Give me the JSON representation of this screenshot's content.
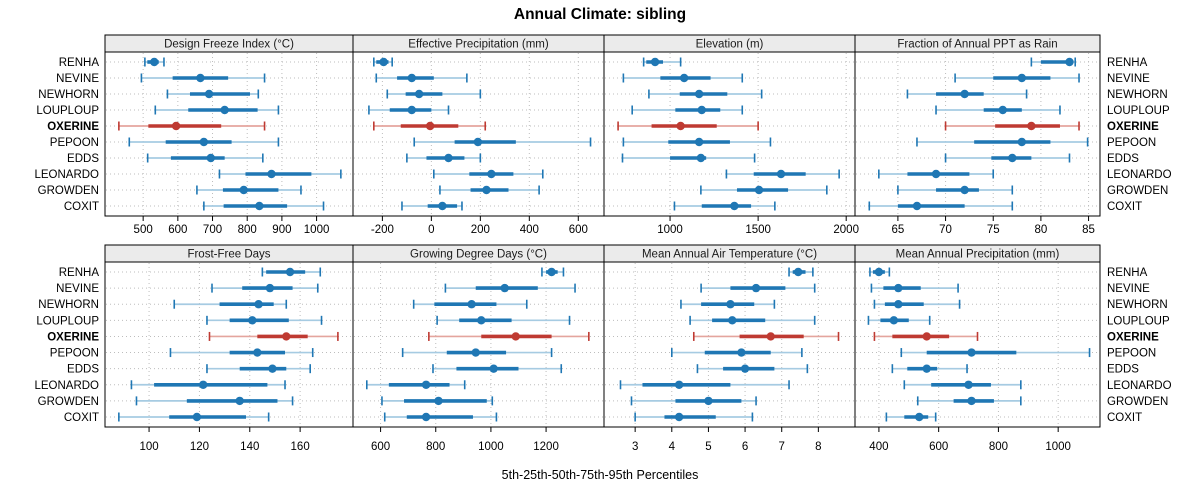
{
  "chart_data": {
    "type": "scatter",
    "variant": "lattice_percentile_interval_dotplot",
    "title": "Annual Climate: sibling",
    "xlabel": "5th-25th-50th-75th-95th Percentiles",
    "percentiles": [
      5,
      25,
      50,
      75,
      95
    ],
    "grid": {
      "rows": 2,
      "cols": 4
    },
    "legend_position": "none",
    "grid_on": true,
    "sites": [
      "RENHA",
      "NEVINE",
      "NEWHORN",
      "LOUPLOUP",
      "OXERINE",
      "PEPOON",
      "EDDS",
      "LEONARDO",
      "GROWDEN",
      "COXIT"
    ],
    "highlighted_site": "OXERINE",
    "colors": {
      "series_dark": "#1f77b4",
      "series_light": "#a6cbe2",
      "highlight_dark": "#bf3a32",
      "highlight_light": "#e4a59e",
      "header_bg": "#ebebeb",
      "panel_border": "#000000",
      "gridline": "#bdbdbd",
      "text": "#000000"
    },
    "panels": [
      {
        "title": "Design Freeze Index (°C)",
        "ticks": [
          500,
          600,
          700,
          800,
          900,
          1000
        ],
        "xlim": [
          390,
          1105
        ],
        "values": [
          [
            505,
            512,
            532,
            545,
            560
          ],
          [
            495,
            585,
            665,
            745,
            850
          ],
          [
            570,
            635,
            690,
            808,
            832
          ],
          [
            535,
            630,
            735,
            830,
            890
          ],
          [
            430,
            515,
            595,
            725,
            850
          ],
          [
            460,
            565,
            675,
            755,
            890
          ],
          [
            513,
            580,
            695,
            735,
            845
          ],
          [
            720,
            795,
            870,
            985,
            1070
          ],
          [
            655,
            730,
            790,
            890,
            955
          ],
          [
            675,
            732,
            835,
            915,
            1020
          ]
        ]
      },
      {
        "title": "Effective Precipitation (mm)",
        "ticks": [
          -200,
          0,
          200,
          400,
          600
        ],
        "xlim": [
          -320,
          705
        ],
        "values": [
          [
            -235,
            -225,
            -195,
            -175,
            -160
          ],
          [
            -225,
            -140,
            -80,
            10,
            145
          ],
          [
            -180,
            -105,
            -50,
            45,
            200
          ],
          [
            -255,
            -170,
            -80,
            0,
            70
          ],
          [
            -235,
            -125,
            -5,
            110,
            220
          ],
          [
            -70,
            95,
            190,
            345,
            650
          ],
          [
            -100,
            -20,
            70,
            135,
            200
          ],
          [
            10,
            155,
            245,
            335,
            455
          ],
          [
            35,
            160,
            225,
            315,
            440
          ],
          [
            -120,
            -15,
            45,
            105,
            125
          ]
        ]
      },
      {
        "title": "Elevation (m)",
        "ticks": [
          1000,
          1500,
          2000
        ],
        "xlim": [
          625,
          2050
        ],
        "values": [
          [
            850,
            865,
            915,
            960,
            1060
          ],
          [
            735,
            945,
            1080,
            1230,
            1410
          ],
          [
            880,
            1055,
            1165,
            1325,
            1520
          ],
          [
            785,
            1030,
            1180,
            1285,
            1410
          ],
          [
            705,
            895,
            1060,
            1265,
            1500
          ],
          [
            735,
            990,
            1165,
            1340,
            1570
          ],
          [
            730,
            1000,
            1175,
            1205,
            1480
          ],
          [
            1320,
            1475,
            1630,
            1770,
            1960
          ],
          [
            1175,
            1380,
            1505,
            1670,
            1890
          ],
          [
            1025,
            1180,
            1365,
            1460,
            1595
          ]
        ]
      },
      {
        "title": "Fraction of Annual PPT as Rain",
        "ticks": [
          65,
          70,
          75,
          80,
          85
        ],
        "xlim": [
          60.5,
          86.2
        ],
        "values": [
          [
            79,
            80,
            83,
            83.2,
            83.6
          ],
          [
            71,
            75,
            78,
            81,
            84
          ],
          [
            66,
            69,
            72,
            74,
            78.5
          ],
          [
            69,
            74,
            76,
            78,
            82
          ],
          [
            70,
            75.2,
            79,
            82,
            84
          ],
          [
            67,
            73,
            78,
            81,
            84.9
          ],
          [
            70,
            74.8,
            77,
            79,
            83
          ],
          [
            63,
            66,
            69,
            72.5,
            75
          ],
          [
            65,
            69,
            72,
            73.5,
            77
          ],
          [
            62,
            65,
            67,
            72,
            77
          ]
        ]
      },
      {
        "title": "Frost-Free Days",
        "ticks": [
          100,
          120,
          140,
          160
        ],
        "xlim": [
          82.5,
          181
        ],
        "values": [
          [
            145,
            146.5,
            156,
            162,
            168
          ],
          [
            125,
            137,
            148,
            157,
            167
          ],
          [
            110,
            128,
            143.5,
            149.5,
            154.5
          ],
          [
            123,
            132,
            141,
            155.5,
            168.5
          ],
          [
            124,
            143,
            154.5,
            163,
            175
          ],
          [
            108.5,
            132,
            143,
            154,
            165
          ],
          [
            123,
            136,
            149,
            154.5,
            164
          ],
          [
            93,
            102,
            121.5,
            147,
            154
          ],
          [
            95,
            115,
            136,
            151,
            157
          ],
          [
            88,
            108,
            119,
            138.5,
            147.5
          ]
        ]
      },
      {
        "title": "Growing Degree Days (°C)",
        "ticks": [
          600,
          800,
          1000,
          1200
        ],
        "xlim": [
          500,
          1410
        ],
        "values": [
          [
            1185,
            1200,
            1220,
            1242,
            1263
          ],
          [
            835,
            945,
            1050,
            1170,
            1305
          ],
          [
            720,
            795,
            930,
            1020,
            1130
          ],
          [
            805,
            885,
            965,
            1075,
            1285
          ],
          [
            775,
            965,
            1090,
            1220,
            1355
          ],
          [
            680,
            840,
            945,
            1055,
            1220
          ],
          [
            790,
            875,
            1010,
            1100,
            1255
          ],
          [
            550,
            630,
            765,
            850,
            905
          ],
          [
            605,
            685,
            810,
            985,
            1005
          ],
          [
            615,
            695,
            765,
            935,
            1020
          ]
        ]
      },
      {
        "title": "Mean Annual Air Temperature (°C)",
        "ticks": [
          3,
          4,
          5,
          6,
          7,
          8
        ],
        "xlim": [
          2.15,
          9.0
        ],
        "values": [
          [
            7.2,
            7.3,
            7.45,
            7.65,
            7.85
          ],
          [
            4.8,
            5.6,
            6.3,
            7.1,
            7.9
          ],
          [
            4.25,
            4.8,
            5.6,
            6.25,
            6.8
          ],
          [
            4.5,
            5.1,
            5.65,
            6.55,
            7.9
          ],
          [
            4.6,
            5.85,
            6.7,
            7.6,
            8.55
          ],
          [
            4.0,
            4.9,
            5.9,
            6.7,
            7.55
          ],
          [
            4.7,
            5.4,
            6.0,
            6.8,
            7.7
          ],
          [
            2.6,
            3.2,
            4.2,
            5.6,
            7.2
          ],
          [
            2.9,
            4.1,
            5.0,
            5.9,
            6.3
          ],
          [
            3.0,
            3.8,
            4.2,
            5.2,
            6.2
          ]
        ]
      },
      {
        "title": "Mean Annual Precipitation (mm)",
        "ticks": [
          400,
          600,
          800,
          1000
        ],
        "xlim": [
          320,
          1140
        ],
        "values": [
          [
            370,
            380,
            400,
            420,
            435
          ],
          [
            375,
            415,
            465,
            540,
            665
          ],
          [
            385,
            420,
            465,
            550,
            670
          ],
          [
            365,
            405,
            450,
            500,
            570
          ],
          [
            385,
            445,
            560,
            635,
            730
          ],
          [
            475,
            560,
            710,
            860,
            1105
          ],
          [
            445,
            495,
            560,
            595,
            695
          ],
          [
            485,
            575,
            700,
            775,
            875
          ],
          [
            530,
            650,
            710,
            785,
            875
          ],
          [
            425,
            485,
            535,
            565,
            590
          ]
        ]
      }
    ]
  }
}
